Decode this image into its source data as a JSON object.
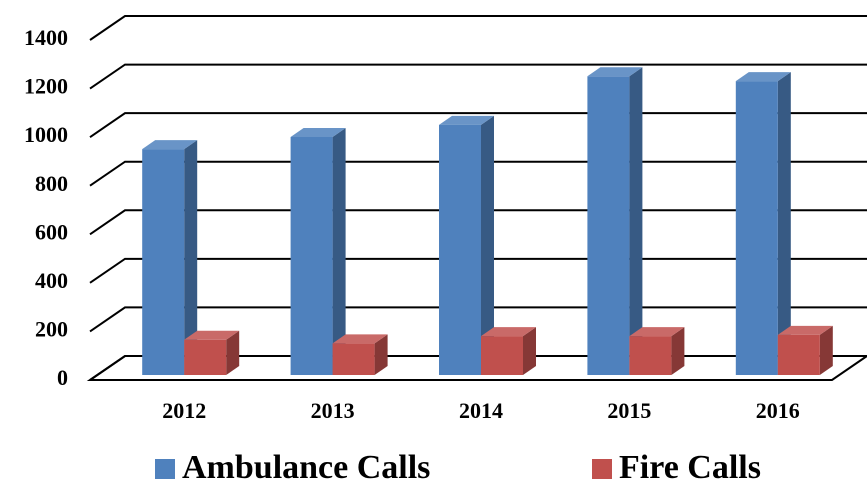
{
  "chart_data": {
    "type": "bar3d",
    "categories": [
      "2012",
      "2013",
      "2014",
      "2015",
      "2016"
    ],
    "series": [
      {
        "name": "Ambulance Calls",
        "color": "#4f81bd",
        "values": [
          930,
          980,
          1030,
          1230,
          1210
        ]
      },
      {
        "name": "Fire Calls",
        "color": "#c0504d",
        "values": [
          145,
          130,
          160,
          160,
          165
        ]
      }
    ],
    "ylim": [
      0,
      1400
    ],
    "yticks": [
      0,
      200,
      400,
      600,
      800,
      1000,
      1200,
      1400
    ],
    "grid": true,
    "legend": "bottom"
  }
}
